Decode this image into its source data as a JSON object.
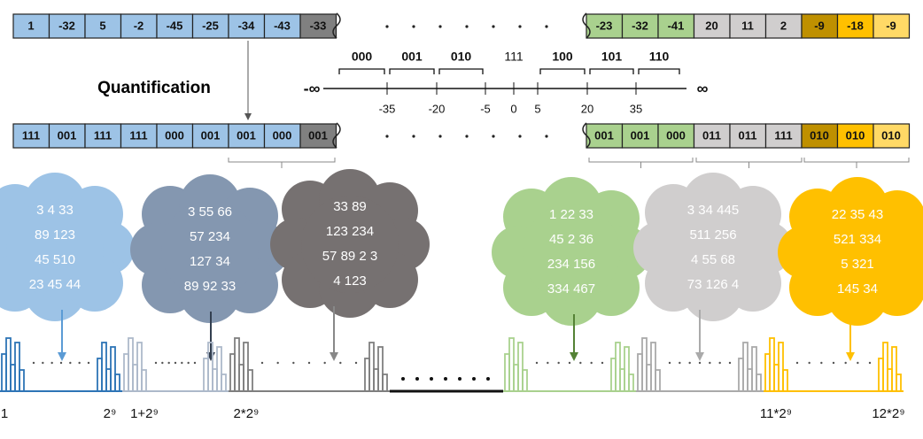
{
  "top_row": {
    "left": [
      "1",
      "-32",
      "5",
      "-2",
      "-45",
      "-25",
      "-34",
      "-43",
      "-33"
    ],
    "right": [
      "-23",
      "-32",
      "-41",
      "20",
      "11",
      "2",
      "-9",
      "-18",
      "-9"
    ]
  },
  "quantification": {
    "label": "Quantification",
    "codes": [
      "000",
      "001",
      "010",
      "111",
      "100",
      "101",
      "110"
    ],
    "ticks": [
      "-35",
      "-20",
      "-5",
      "0",
      "5",
      "20",
      "35"
    ],
    "ends": [
      "-∞",
      "∞"
    ]
  },
  "code_row": {
    "left": [
      "111",
      "001",
      "111",
      "111",
      "000",
      "001",
      "001",
      "000",
      "001"
    ],
    "right": [
      "001",
      "001",
      "000",
      "011",
      "011",
      "111",
      "010",
      "010",
      "010"
    ]
  },
  "clouds": [
    {
      "lines": [
        "3  4  33",
        "89 123",
        "45 510",
        "23 45 44"
      ]
    },
    {
      "lines": [
        "3 55 66",
        "57 234",
        "127 34",
        "89 92 33"
      ]
    },
    {
      "lines": [
        "33 89",
        "123 234",
        "57 89 2 3",
        "4 123"
      ]
    },
    {
      "lines": [
        "1 22 33",
        "45 2 36",
        "234 156",
        "334 467"
      ]
    },
    {
      "lines": [
        "3 34 445",
        "511 256",
        "4 55 68",
        "73 126 4"
      ]
    },
    {
      "lines": [
        "22 35 43",
        "521 334",
        "5 321",
        "145 34"
      ]
    }
  ],
  "x_labels": [
    "1",
    "2⁹",
    "1+2⁹",
    "2*2⁹",
    "11*2⁹",
    "12*2⁹"
  ]
}
